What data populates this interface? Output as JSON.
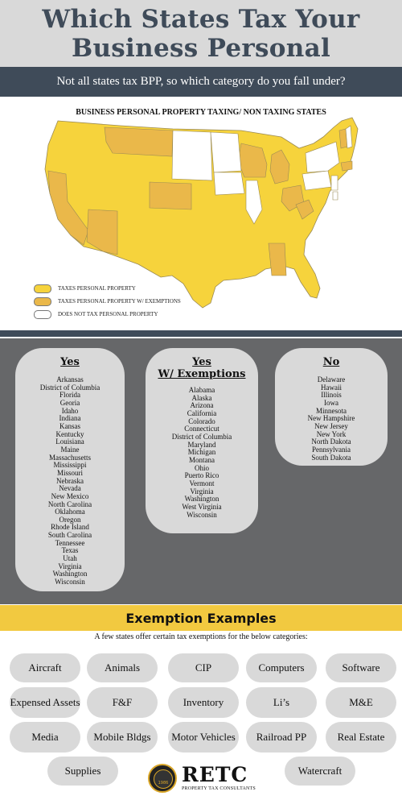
{
  "header": {
    "title": "Which States Tax Your Business Personal Property?",
    "subtitle": "Not all states tax BPP, so which category do you fall under?"
  },
  "map": {
    "title": "BUSINESS PERSONAL PROPERTY TAXING/ NON TAXING STATES",
    "legend": [
      {
        "label": "TAXES PERSONAL PROPERTY",
        "color": "#f6d33c"
      },
      {
        "label": "TAXES PERSONAL PROPERTY W/ EXEMPTIONS",
        "color": "#eab84a"
      },
      {
        "label": "DOES NOT TAX PERSONAL PROPERTY",
        "color": "#ffffff"
      }
    ]
  },
  "columns": {
    "yes": {
      "title": "Yes",
      "states": [
        "Arkansas",
        "District of Columbia",
        "Florida",
        "Georia",
        "Idaho",
        "Indiana",
        "Kansas",
        "Kentucky",
        "Louisiana",
        "Maine",
        "Massachusetts",
        "Mississippi",
        "Missouri",
        "Nebraska",
        "Nevada",
        "New Mexico",
        "North Carolina",
        "Oklahoma",
        "Oregon",
        "Rhode Island",
        "South Carolina",
        "Tennessee",
        "Texas",
        "Utah",
        "Virginia",
        "Washington",
        "Wisconsin"
      ]
    },
    "exemptions": {
      "title_line1": "Yes",
      "title_line2": "W/ Exemptions",
      "states": [
        "Alabama",
        "Alaska",
        "Arizona",
        "California",
        "Colorado",
        "Connecticut",
        "District of Columbia",
        "Maryland",
        "Michigan",
        "Montana",
        "Ohio",
        "Puerto Rico",
        "Vermont",
        "Virginia",
        "Washington",
        "West Virginia",
        "Wisconsin"
      ]
    },
    "no": {
      "title": "No",
      "states": [
        "Delaware",
        "Hawaii",
        "Illinois",
        "Iowa",
        "Minnesota",
        "New Hampshire",
        "New Jersey",
        "New York",
        "North Dakota",
        "Pennsylvania",
        "South Dakota"
      ]
    }
  },
  "exemptions": {
    "heading": "Exemption Examples",
    "subtitle": "A few states offer certain tax exemptions for the below categories:",
    "items": [
      "Aircraft",
      "Animals",
      "CIP",
      "Computers",
      "Software",
      "Expensed Assets",
      "F&F",
      "Inventory",
      "Li’s",
      "M&E",
      "Media",
      "Mobile Bldgs",
      "Motor Vehicles",
      "Railroad PP",
      "Real Estate",
      "Supplies",
      "Watercraft"
    ]
  },
  "logo": {
    "name": "RETC",
    "tagline": "PROPERTY TAX CONSULTANTS",
    "year": "1986"
  }
}
